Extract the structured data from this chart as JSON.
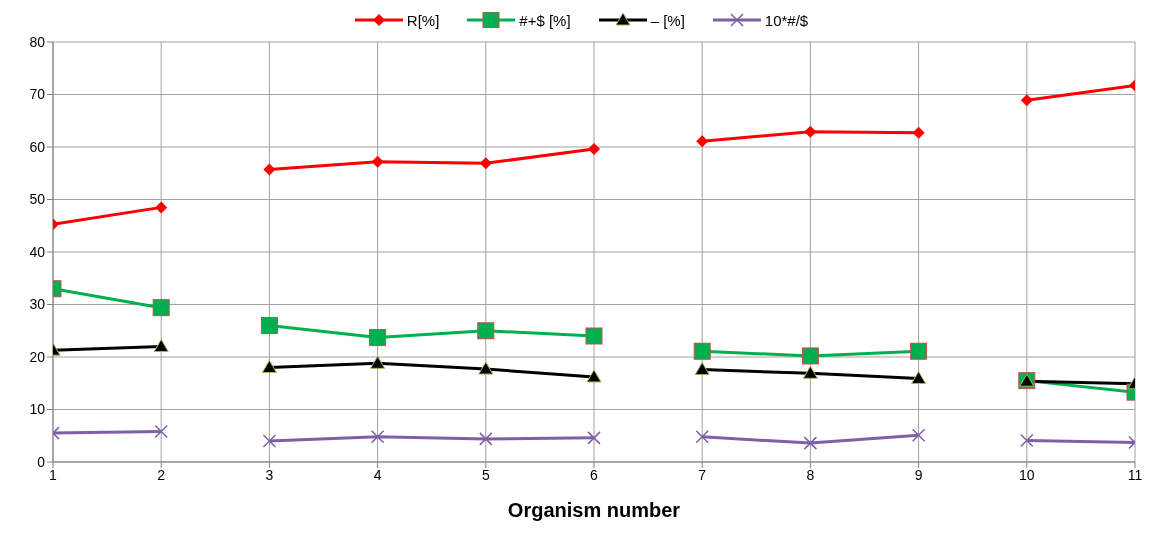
{
  "chart_data": {
    "type": "line",
    "xlabel": "Organism number",
    "xlim": [
      1,
      11
    ],
    "xticks": [
      1,
      2,
      3,
      4,
      5,
      6,
      7,
      8,
      9,
      10,
      11
    ],
    "ylim": [
      0,
      80
    ],
    "yticks": [
      0,
      10,
      20,
      30,
      40,
      50,
      60,
      70,
      80
    ],
    "grid": true,
    "legend": "top",
    "line_style": "solid",
    "series": [
      {
        "name": "R[%]",
        "color": "#ff0000",
        "marker": "diamond",
        "x": [
          1,
          2
        ],
        "values": [
          45.3,
          48.5
        ]
      },
      {
        "color": "#ff0000",
        "marker": "diamond",
        "x": [
          3,
          4,
          5,
          6
        ],
        "values": [
          55.7,
          57.2,
          56.9,
          59.6
        ]
      },
      {
        "color": "#ff0000",
        "marker": "diamond",
        "x": [
          7,
          8,
          9
        ],
        "values": [
          61.1,
          62.9,
          62.7
        ]
      },
      {
        "color": "#ff0000",
        "marker": "diamond",
        "x": [
          10,
          11
        ],
        "values": [
          68.9,
          71.7
        ]
      },
      {
        "name": "#+$ [%]",
        "color": "#00b050",
        "marker": "square",
        "x": [
          1,
          2
        ],
        "values": [
          33,
          29.4
        ]
      },
      {
        "color": "#00b050",
        "marker": "square",
        "x": [
          3,
          4,
          5,
          6
        ],
        "values": [
          26,
          23.7,
          25,
          24
        ]
      },
      {
        "color": "#00b050",
        "marker": "square",
        "x": [
          7,
          8,
          9
        ],
        "values": [
          21.1,
          20.2,
          21.1
        ]
      },
      {
        "color": "#00b050",
        "marker": "square",
        "x": [
          10,
          11
        ],
        "values": [
          15.5,
          13.3
        ]
      },
      {
        "name": "– [%]",
        "color": "#000000",
        "marker": "triangle",
        "x": [
          1,
          2
        ],
        "values": [
          21.3,
          22
        ]
      },
      {
        "color": "#000000",
        "marker": "triangle",
        "x": [
          3,
          4,
          5,
          6
        ],
        "values": [
          18,
          18.8,
          17.7,
          16.2
        ]
      },
      {
        "color": "#000000",
        "marker": "triangle",
        "x": [
          7,
          8,
          9
        ],
        "values": [
          17.6,
          16.9,
          15.9
        ]
      },
      {
        "color": "#000000",
        "marker": "triangle",
        "x": [
          10,
          11
        ],
        "values": [
          15.4,
          14.9
        ]
      },
      {
        "name": "10*#/$",
        "color": "#7f5fa8",
        "marker": "cross",
        "x": [
          1,
          2
        ],
        "values": [
          5.5,
          5.8
        ]
      },
      {
        "color": "#7f5fa8",
        "marker": "cross",
        "x": [
          3,
          4,
          5,
          6
        ],
        "values": [
          4,
          4.8,
          4.4,
          4.6
        ]
      },
      {
        "color": "#7f5fa8",
        "marker": "cross",
        "x": [
          7,
          8,
          9
        ],
        "values": [
          4.8,
          3.6,
          5.1
        ]
      },
      {
        "color": "#7f5fa8",
        "marker": "cross",
        "x": [
          10,
          11
        ],
        "values": [
          4.1,
          3.7
        ]
      }
    ]
  }
}
